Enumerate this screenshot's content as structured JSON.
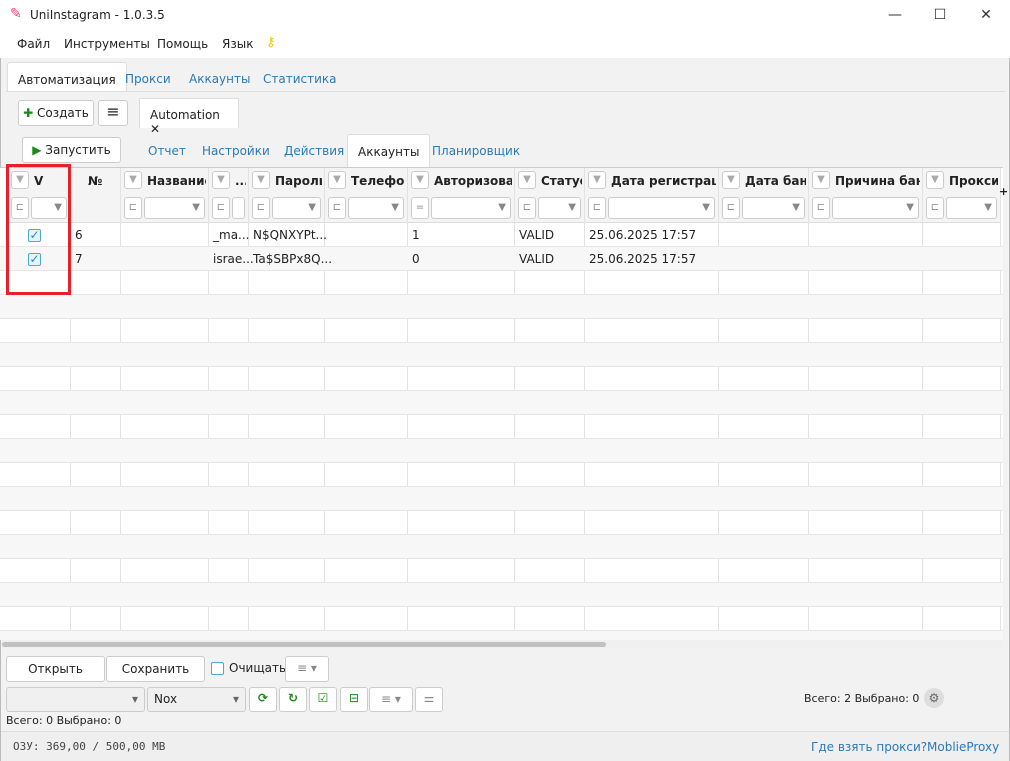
{
  "window": {
    "title": "UniInstagram - 1.0.3.5",
    "minimize": "—",
    "maximize": "☐",
    "close": "✕"
  },
  "menu": [
    "Файл",
    "Инструменты",
    "Помощь",
    "Язык"
  ],
  "main_tabs": [
    "Автоматизация",
    "Прокси",
    "Аккаунты",
    "Статистика"
  ],
  "toolbar": {
    "create": "Создать",
    "automation_tab": "Automation",
    "close": "✕",
    "run": "Запустить"
  },
  "sub_tabs": [
    "Отчет",
    "Настройки",
    "Действия",
    "Аккаунты",
    "Планировщик"
  ],
  "columns": [
    "V",
    "№",
    "Название",
    "...",
    "Пароль",
    "Телефон",
    "Авторизован",
    "Статус",
    "Дата регистрации",
    "Дата бана",
    "Причина бана",
    "Прокси"
  ],
  "filter_ops": {
    "auth": "="
  },
  "rows": [
    {
      "checked": true,
      "num": "6",
      "name": "",
      "login": "_ma...",
      "password": "N$QNXYPt...",
      "phone": "",
      "auth": "1",
      "status": "VALID",
      "reg": "25.06.2025 17:57",
      "ban": "",
      "reason": "",
      "proxy": ""
    },
    {
      "checked": true,
      "num": "7",
      "name": "",
      "login": "israe...",
      "password": "Ta$SBPx8Q...",
      "phone": "",
      "auth": "0",
      "status": "VALID",
      "reg": "25.06.2025 17:57",
      "ban": "",
      "reason": "",
      "proxy": ""
    }
  ],
  "bottom": {
    "open": "Открыть",
    "save": "Сохранить",
    "clear": "Очищать",
    "device_select": "",
    "emulator_select": "Nox",
    "left_counts": "Всего: 0  Выбрано: 0",
    "right_counts": "Всего: 2  Выбрано: 0"
  },
  "status": {
    "ram": "ОЗУ: 369,00 / 500,00 MB",
    "link1": "Где взять прокси?",
    "link2": "MoblieProxy"
  },
  "colors": {
    "highlight": "#e8202a",
    "link": "#2a7ab8",
    "green": "#1a8a1a"
  }
}
